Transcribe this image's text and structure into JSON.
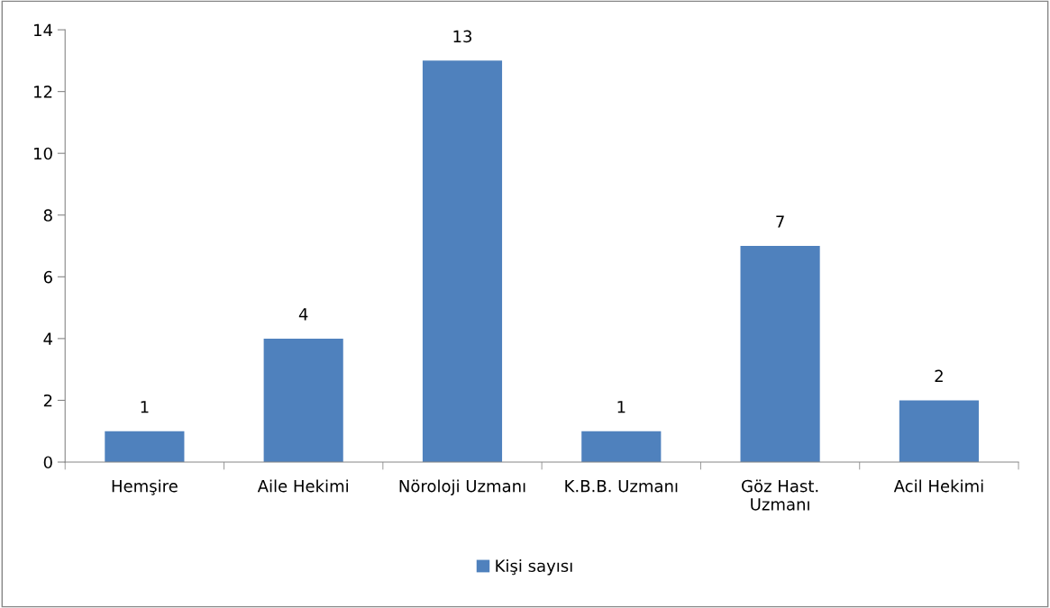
{
  "chart_data": {
    "type": "bar",
    "categories": [
      "Hemşire",
      "Aile Hekimi",
      "Nöroloji Uzmanı",
      "K.B.B. Uzmanı",
      "Göz Hast. Uzmanı",
      "Acil Hekimi"
    ],
    "series": [
      {
        "name": "Kişi sayısı",
        "color": "#4f81bd",
        "values": [
          1,
          4,
          13,
          1,
          7,
          2
        ]
      }
    ],
    "ylim": [
      0,
      14
    ],
    "yticks": [
      0,
      2,
      4,
      6,
      8,
      10,
      12,
      14
    ],
    "data_labels": true,
    "legend": "bottom",
    "grid": false
  }
}
